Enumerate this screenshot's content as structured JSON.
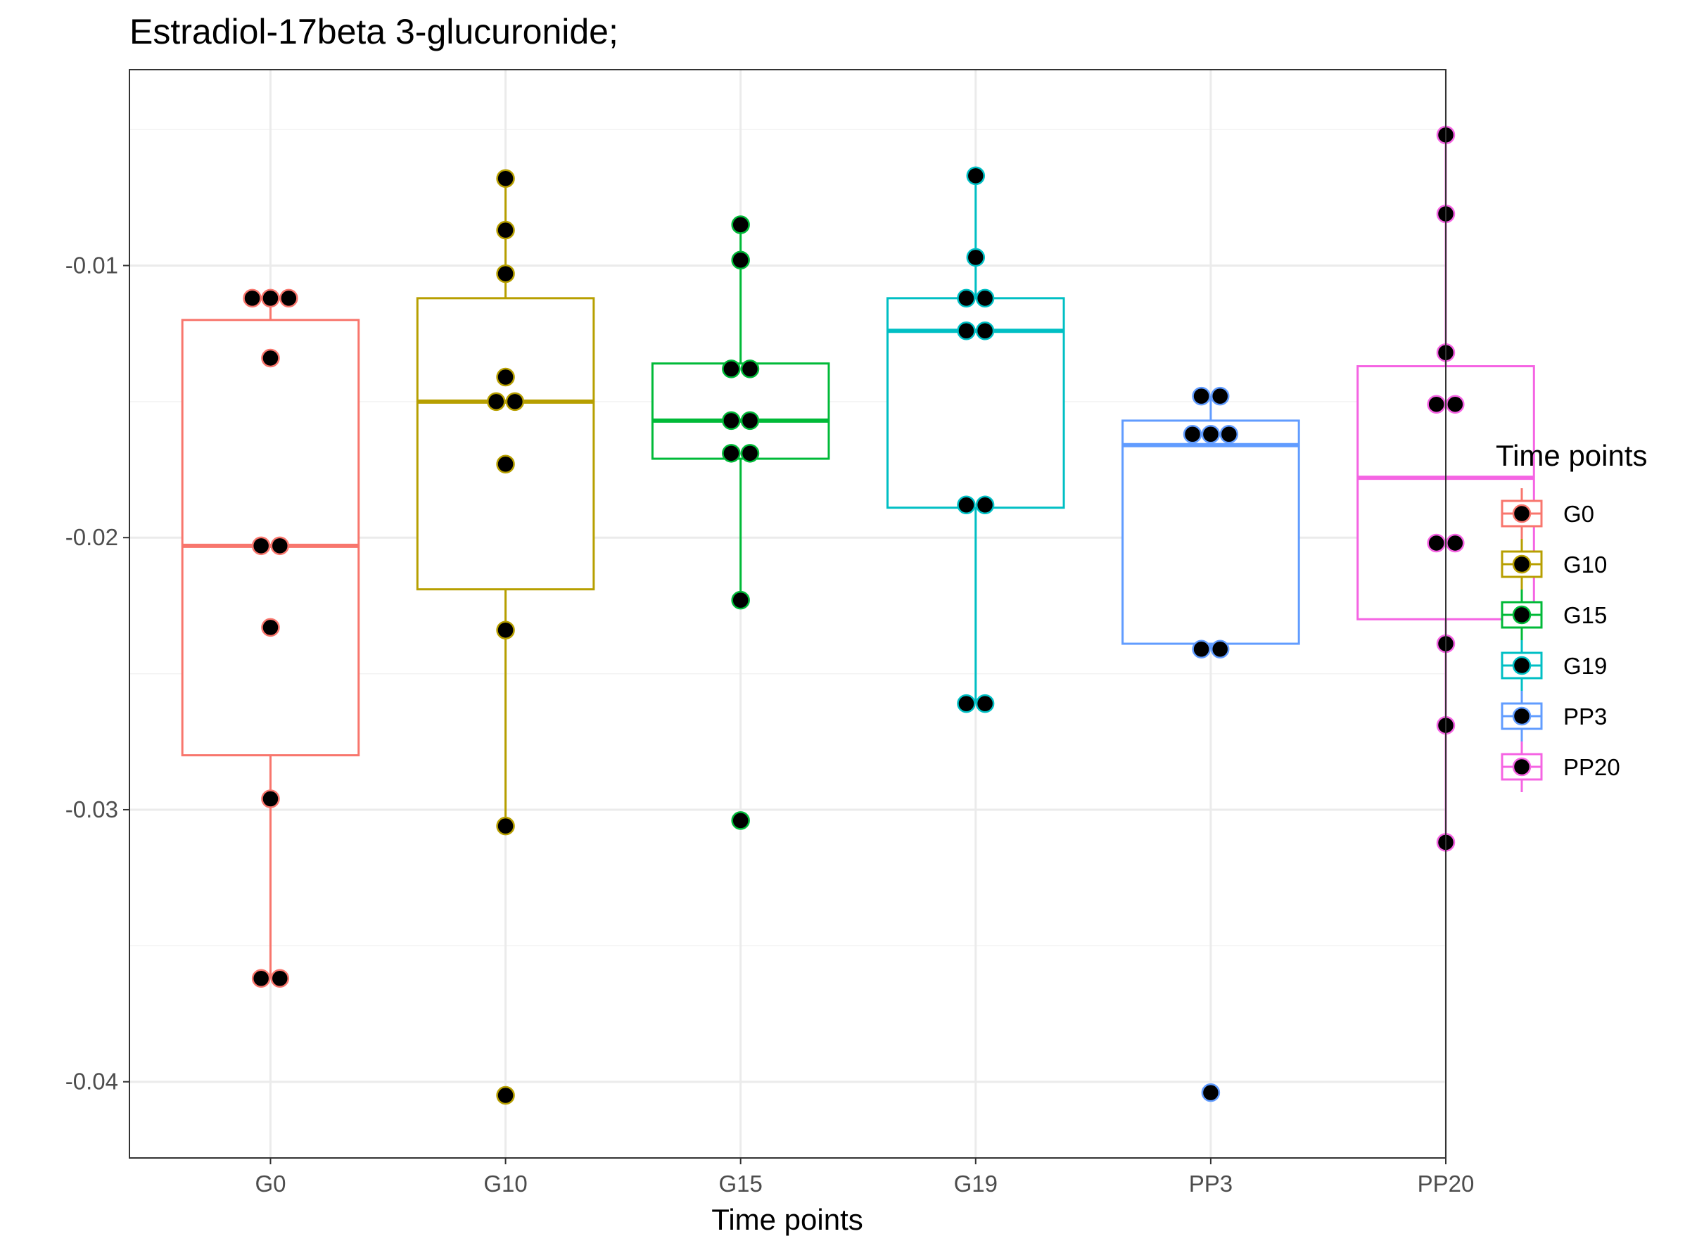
{
  "chart_data": {
    "type": "box",
    "title": "Estradiol-17beta 3-glucuronide;",
    "xlabel": "Time points",
    "ylabel": "",
    "categories": [
      "G0",
      "G10",
      "G15",
      "G19",
      "PP3",
      "PP20"
    ],
    "yticks": [
      -0.04,
      -0.03,
      -0.02,
      -0.01
    ],
    "ytick_labels": [
      "-0.04",
      "-0.03",
      "-0.02",
      "-0.01"
    ],
    "ylim": [
      -0.0428,
      -0.0028
    ],
    "grid": true,
    "legend": {
      "title": "Time points",
      "position": "right",
      "entries": [
        "G0",
        "G10",
        "G15",
        "G19",
        "PP3",
        "PP20"
      ]
    },
    "colors": {
      "G0": "#F8766D",
      "G10": "#B79F00",
      "G15": "#00BA38",
      "G19": "#00BFC4",
      "PP3": "#619CFF",
      "PP20": "#F564E3"
    },
    "series": [
      {
        "category": "G0",
        "box": {
          "whisker_low": -0.0362,
          "q1": -0.028,
          "median": -0.0203,
          "q3": -0.012,
          "whisker_high": -0.0112
        },
        "points": [
          {
            "y": -0.0112,
            "dx": -0.35
          },
          {
            "y": -0.0112,
            "dx": 0
          },
          {
            "y": -0.0112,
            "dx": 0.35
          },
          {
            "y": -0.0134,
            "dx": 0
          },
          {
            "y": -0.0203,
            "dx": -0.18
          },
          {
            "y": -0.0203,
            "dx": 0.18
          },
          {
            "y": -0.0233,
            "dx": 0
          },
          {
            "y": -0.0296,
            "dx": 0
          },
          {
            "y": -0.0362,
            "dx": -0.18
          },
          {
            "y": -0.0362,
            "dx": 0.18
          }
        ]
      },
      {
        "category": "G10",
        "box": {
          "whisker_low": -0.0306,
          "q1": -0.0219,
          "median": -0.015,
          "q3": -0.0112,
          "whisker_high": -0.0068
        },
        "points": [
          {
            "y": -0.0068,
            "dx": 0
          },
          {
            "y": -0.0087,
            "dx": 0
          },
          {
            "y": -0.0103,
            "dx": 0
          },
          {
            "y": -0.0141,
            "dx": 0
          },
          {
            "y": -0.015,
            "dx": -0.18
          },
          {
            "y": -0.015,
            "dx": 0.18
          },
          {
            "y": -0.0173,
            "dx": 0
          },
          {
            "y": -0.0234,
            "dx": 0
          },
          {
            "y": -0.0306,
            "dx": 0
          },
          {
            "y": -0.0405,
            "dx": 0
          }
        ]
      },
      {
        "category": "G15",
        "box": {
          "whisker_low": -0.0223,
          "q1": -0.0171,
          "median": -0.0157,
          "q3": -0.0136,
          "whisker_high": -0.0085
        },
        "points": [
          {
            "y": -0.0085,
            "dx": 0
          },
          {
            "y": -0.0098,
            "dx": 0
          },
          {
            "y": -0.0138,
            "dx": -0.18
          },
          {
            "y": -0.0138,
            "dx": 0.18
          },
          {
            "y": -0.0157,
            "dx": -0.18
          },
          {
            "y": -0.0157,
            "dx": 0.18
          },
          {
            "y": -0.0169,
            "dx": -0.18
          },
          {
            "y": -0.0169,
            "dx": 0.18
          },
          {
            "y": -0.0223,
            "dx": 0
          },
          {
            "y": -0.0304,
            "dx": 0
          }
        ]
      },
      {
        "category": "G19",
        "box": {
          "whisker_low": -0.0261,
          "q1": -0.0189,
          "median": -0.0124,
          "q3": -0.0112,
          "whisker_high": -0.0067
        },
        "points": [
          {
            "y": -0.0067,
            "dx": 0
          },
          {
            "y": -0.0097,
            "dx": 0
          },
          {
            "y": -0.0112,
            "dx": -0.18
          },
          {
            "y": -0.0112,
            "dx": 0.18
          },
          {
            "y": -0.0124,
            "dx": -0.18
          },
          {
            "y": -0.0124,
            "dx": 0.18
          },
          {
            "y": -0.0188,
            "dx": -0.18
          },
          {
            "y": -0.0188,
            "dx": 0.18
          },
          {
            "y": -0.0261,
            "dx": -0.18
          },
          {
            "y": -0.0261,
            "dx": 0.18
          }
        ]
      },
      {
        "category": "PP3",
        "box": {
          "whisker_low": -0.0241,
          "q1": -0.0239,
          "median": -0.0166,
          "q3": -0.0157,
          "whisker_high": -0.0148
        },
        "points": [
          {
            "y": -0.0148,
            "dx": -0.18
          },
          {
            "y": -0.0148,
            "dx": 0.18
          },
          {
            "y": -0.0162,
            "dx": -0.35
          },
          {
            "y": -0.0162,
            "dx": 0
          },
          {
            "y": -0.0162,
            "dx": 0.35
          },
          {
            "y": -0.0241,
            "dx": -0.18
          },
          {
            "y": -0.0241,
            "dx": 0.18
          },
          {
            "y": -0.0404,
            "dx": 0
          }
        ]
      },
      {
        "category": "PP20",
        "box": {
          "whisker_low": -0.0312,
          "q1": -0.023,
          "median": -0.0178,
          "q3": -0.0137,
          "whisker_high": -0.0052
        },
        "points": [
          {
            "y": -0.0052,
            "dx": 0
          },
          {
            "y": -0.0081,
            "dx": 0
          },
          {
            "y": -0.0132,
            "dx": 0
          },
          {
            "y": -0.0151,
            "dx": -0.18
          },
          {
            "y": -0.0151,
            "dx": 0.18
          },
          {
            "y": -0.0202,
            "dx": -0.18
          },
          {
            "y": -0.0202,
            "dx": 0.18
          },
          {
            "y": -0.0239,
            "dx": 0
          },
          {
            "y": -0.0269,
            "dx": 0
          },
          {
            "y": -0.0312,
            "dx": 0
          }
        ]
      }
    ]
  }
}
